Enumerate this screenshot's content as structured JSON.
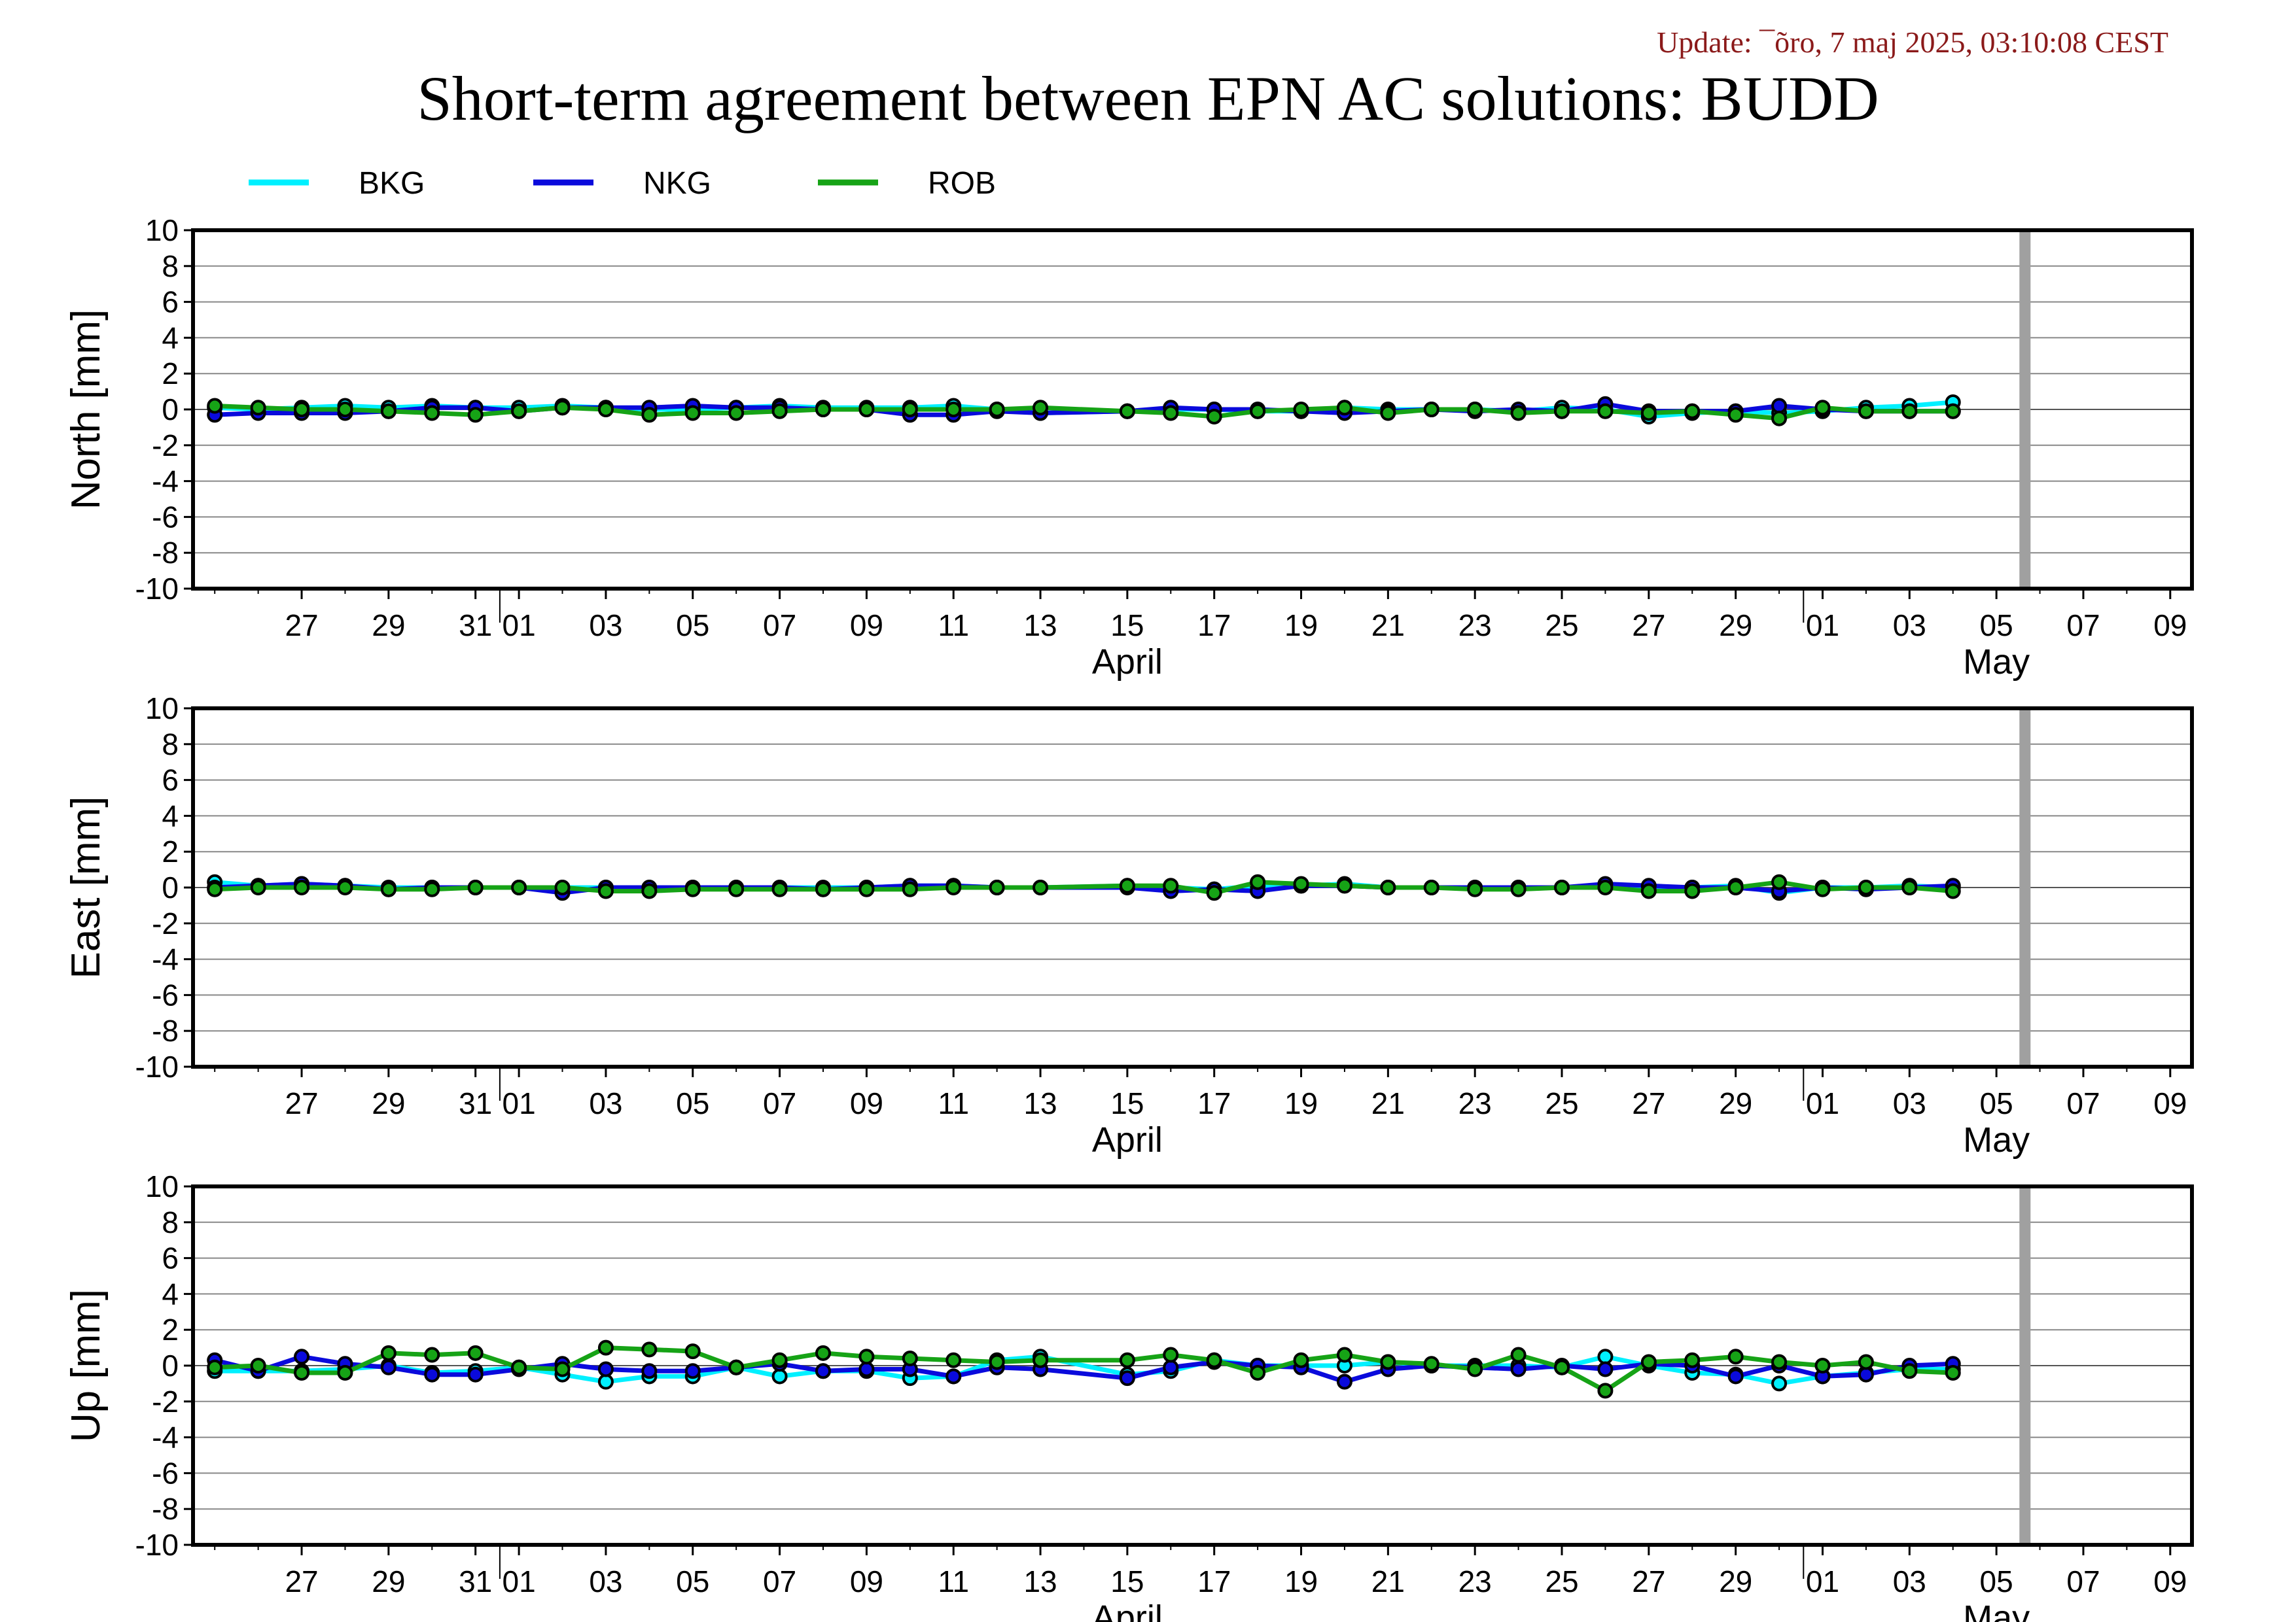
{
  "update_text": "Update: ¯õro, 7 maj 2025, 03:10:08 CEST",
  "title": "Short-term agreement between EPN AC solutions: BUDD",
  "colors": {
    "BKG": "#00f0ff",
    "NKG": "#0a0adc",
    "ROB": "#16a316",
    "grid": "#888888",
    "gap_bar": "#a0a0a0"
  },
  "legend": [
    {
      "name": "BKG",
      "color": "#00f0ff"
    },
    {
      "name": "NKG",
      "color": "#0a0adc"
    },
    {
      "name": "ROB",
      "color": "#16a316"
    }
  ],
  "chart_data": {
    "type": "line",
    "x_axis": {
      "range": [
        "2025-03-25",
        "2025-05-09"
      ],
      "tick_dates": [
        "2025-03-27",
        "2025-03-29",
        "2025-03-31",
        "2025-04-01",
        "2025-04-03",
        "2025-04-05",
        "2025-04-07",
        "2025-04-09",
        "2025-04-11",
        "2025-04-13",
        "2025-04-15",
        "2025-04-17",
        "2025-04-19",
        "2025-04-21",
        "2025-04-23",
        "2025-04-25",
        "2025-04-27",
        "2025-04-29",
        "2025-05-01",
        "2025-05-03",
        "2025-05-05",
        "2025-05-07",
        "2025-05-09"
      ],
      "tick_labels": [
        "27",
        "29",
        "31",
        "01",
        "03",
        "05",
        "07",
        "09",
        "11",
        "13",
        "15",
        "17",
        "19",
        "21",
        "23",
        "25",
        "27",
        "29",
        "01",
        "03",
        "05",
        "07",
        "09"
      ],
      "months": [
        {
          "label": "April",
          "date": "2025-04-15"
        },
        {
          "label": "May",
          "date": "2025-05-05"
        }
      ],
      "month_boundaries": [
        "2025-04-01",
        "2025-05-01"
      ]
    },
    "marker_line_date": "2025-05-06",
    "x": [
      "2025-03-25",
      "2025-03-26",
      "2025-03-27",
      "2025-03-28",
      "2025-03-29",
      "2025-03-30",
      "2025-03-31",
      "2025-04-01",
      "2025-04-02",
      "2025-04-03",
      "2025-04-04",
      "2025-04-05",
      "2025-04-06",
      "2025-04-07",
      "2025-04-08",
      "2025-04-09",
      "2025-04-10",
      "2025-04-11",
      "2025-04-12",
      "2025-04-13",
      "2025-04-15",
      "2025-04-16",
      "2025-04-17",
      "2025-04-18",
      "2025-04-19",
      "2025-04-20",
      "2025-04-21",
      "2025-04-22",
      "2025-04-23",
      "2025-04-24",
      "2025-04-25",
      "2025-04-26",
      "2025-04-27",
      "2025-04-28",
      "2025-04-29",
      "2025-04-30",
      "2025-05-01",
      "2025-05-02",
      "2025-05-03",
      "2025-05-04"
    ],
    "panels": [
      {
        "ylabel": "North [mm]",
        "ylim": [
          -10,
          10
        ],
        "yticks": [
          10,
          8,
          6,
          4,
          2,
          0,
          -2,
          -4,
          -6,
          -8,
          -10
        ],
        "series": [
          {
            "name": "BKG",
            "values": [
              0.1,
              0.0,
              0.1,
              0.2,
              0.1,
              0.2,
              0.1,
              0.1,
              0.2,
              0.1,
              0.0,
              0.0,
              0.1,
              0.2,
              0.1,
              0.1,
              0.1,
              0.2,
              0.0,
              -0.2,
              -0.1,
              0.0,
              0.0,
              -0.1,
              -0.1,
              0.1,
              0.0,
              0.0,
              0.0,
              -0.1,
              0.1,
              0.0,
              -0.4,
              -0.2,
              -0.1,
              -0.2,
              -0.1,
              0.1,
              0.2,
              0.4
            ]
          },
          {
            "name": "NKG",
            "values": [
              -0.3,
              -0.2,
              -0.2,
              -0.2,
              -0.1,
              0.1,
              0.1,
              -0.1,
              0.1,
              0.1,
              0.1,
              0.2,
              0.1,
              0.1,
              0.0,
              0.0,
              -0.3,
              -0.3,
              -0.1,
              -0.2,
              -0.1,
              0.1,
              0.0,
              0.0,
              -0.1,
              -0.2,
              -0.1,
              0.0,
              -0.1,
              0.0,
              -0.1,
              0.3,
              -0.1,
              -0.1,
              -0.1,
              0.2,
              0.0,
              -0.1,
              -0.1,
              -0.1
            ]
          },
          {
            "name": "ROB",
            "values": [
              0.2,
              0.1,
              0.0,
              0.0,
              -0.1,
              -0.2,
              -0.3,
              -0.1,
              0.1,
              0.0,
              -0.3,
              -0.2,
              -0.2,
              -0.1,
              0.0,
              0.0,
              0.0,
              0.0,
              0.0,
              0.1,
              -0.1,
              -0.2,
              -0.4,
              -0.1,
              0.0,
              0.1,
              -0.2,
              0.0,
              0.0,
              -0.2,
              -0.1,
              -0.1,
              -0.2,
              -0.1,
              -0.3,
              -0.5,
              0.1,
              -0.1,
              -0.1,
              -0.1
            ]
          }
        ]
      },
      {
        "ylabel": "East [mm]",
        "ylim": [
          -10,
          10
        ],
        "yticks": [
          10,
          8,
          6,
          4,
          2,
          0,
          -2,
          -4,
          -6,
          -8,
          -10
        ],
        "series": [
          {
            "name": "BKG",
            "values": [
              0.3,
              0.1,
              0.2,
              0.1,
              0.0,
              0.0,
              0.0,
              0.0,
              0.0,
              0.0,
              0.0,
              0.0,
              0.0,
              0.0,
              0.0,
              0.0,
              0.1,
              0.1,
              0.0,
              0.0,
              0.1,
              0.0,
              -0.1,
              0.1,
              0.1,
              0.2,
              0.0,
              0.0,
              0.0,
              0.0,
              0.0,
              0.1,
              0.0,
              0.0,
              0.1,
              -0.3,
              0.0,
              0.0,
              0.1,
              0.0
            ]
          },
          {
            "name": "NKG",
            "values": [
              0.0,
              0.1,
              0.2,
              0.1,
              -0.1,
              0.0,
              0.0,
              0.0,
              -0.3,
              0.0,
              0.0,
              0.0,
              0.0,
              0.0,
              -0.1,
              0.0,
              0.1,
              0.1,
              0.0,
              0.0,
              0.0,
              -0.2,
              -0.1,
              -0.2,
              0.1,
              0.1,
              0.0,
              0.0,
              0.0,
              0.0,
              0.0,
              0.2,
              0.1,
              0.0,
              0.0,
              -0.2,
              0.0,
              -0.1,
              0.0,
              0.1
            ]
          },
          {
            "name": "ROB",
            "values": [
              -0.1,
              0.0,
              0.0,
              0.0,
              -0.1,
              -0.1,
              0.0,
              0.0,
              0.0,
              -0.2,
              -0.2,
              -0.1,
              -0.1,
              -0.1,
              -0.1,
              -0.1,
              -0.1,
              0.0,
              0.0,
              0.0,
              0.1,
              0.1,
              -0.3,
              0.3,
              0.2,
              0.1,
              0.0,
              0.0,
              -0.1,
              -0.1,
              0.0,
              0.0,
              -0.2,
              -0.2,
              0.0,
              0.3,
              -0.1,
              0.0,
              0.0,
              -0.2
            ]
          }
        ]
      },
      {
        "ylabel": "Up [mm]",
        "ylim": [
          -10,
          10
        ],
        "yticks": [
          10,
          8,
          6,
          4,
          2,
          0,
          -2,
          -4,
          -6,
          -8,
          -10
        ],
        "series": [
          {
            "name": "BKG",
            "values": [
              -0.3,
              -0.3,
              -0.3,
              -0.2,
              0.0,
              -0.4,
              -0.3,
              -0.1,
              -0.5,
              -0.9,
              -0.6,
              -0.6,
              -0.1,
              -0.6,
              -0.3,
              -0.3,
              -0.7,
              -0.6,
              0.3,
              0.5,
              -0.5,
              -0.3,
              0.3,
              0.0,
              0.0,
              0.0,
              0.2,
              0.0,
              0.0,
              0.0,
              -0.1,
              0.5,
              0.0,
              -0.4,
              -0.5,
              -1.0,
              -0.6,
              -0.4,
              -0.2,
              -0.2
            ]
          },
          {
            "name": "NKG",
            "values": [
              0.3,
              -0.3,
              0.5,
              0.1,
              -0.1,
              -0.5,
              -0.5,
              -0.2,
              0.1,
              -0.2,
              -0.3,
              -0.3,
              -0.1,
              0.1,
              -0.3,
              -0.2,
              -0.2,
              -0.6,
              -0.1,
              -0.2,
              -0.7,
              -0.1,
              0.2,
              0.0,
              -0.1,
              -0.9,
              -0.2,
              0.0,
              -0.1,
              -0.2,
              0.0,
              -0.2,
              0.1,
              0.0,
              -0.6,
              0.0,
              -0.6,
              -0.5,
              0.0,
              0.1
            ]
          },
          {
            "name": "ROB",
            "values": [
              -0.1,
              0.0,
              -0.4,
              -0.4,
              0.7,
              0.6,
              0.7,
              -0.1,
              -0.2,
              1.0,
              0.9,
              0.8,
              -0.1,
              0.3,
              0.7,
              0.5,
              0.4,
              0.3,
              0.2,
              0.3,
              0.3,
              0.6,
              0.3,
              -0.4,
              0.3,
              0.6,
              0.2,
              0.1,
              -0.2,
              0.6,
              -0.1,
              -1.4,
              0.2,
              0.3,
              0.5,
              0.2,
              0.0,
              0.2,
              -0.3,
              -0.4
            ]
          }
        ]
      }
    ]
  }
}
